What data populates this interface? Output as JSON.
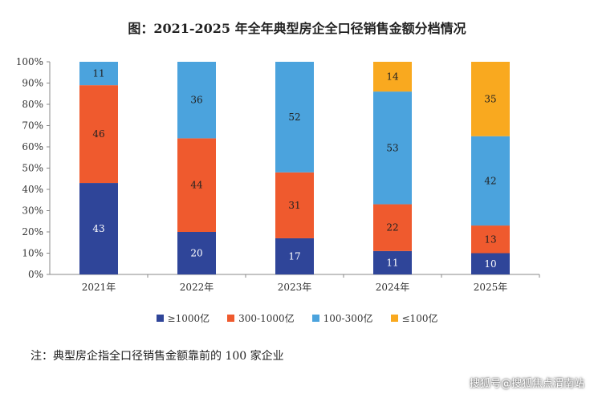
{
  "title": "图：2021-2025 年全年典型房企全口径销售金额分档情况",
  "note": "注：典型房企指全口径销售金额靠前的 100 家企业",
  "watermark": "搜狐号@搜狐焦点渭南站",
  "chart_data": {
    "type": "bar",
    "stacked": true,
    "title": "图：2021-2025 年全年典型房企全口径销售金额分档情况",
    "categories": [
      "2021年",
      "2022年",
      "2023年",
      "2024年",
      "2025年"
    ],
    "series": [
      {
        "name": "≥1000亿",
        "color": "#2f4599",
        "values": [
          43,
          20,
          17,
          11,
          10
        ]
      },
      {
        "name": "300-1000亿",
        "color": "#ef5a2e",
        "values": [
          46,
          44,
          31,
          22,
          13
        ]
      },
      {
        "name": "100-300亿",
        "color": "#4ba3dd",
        "values": [
          11,
          36,
          52,
          53,
          42
        ]
      },
      {
        "name": "≤100亿",
        "color": "#f9a91f",
        "values": [
          null,
          null,
          null,
          14,
          35
        ]
      }
    ],
    "ylim": [
      0,
      100
    ],
    "yticks": [
      "0%",
      "10%",
      "20%",
      "30%",
      "40%",
      "50%",
      "60%",
      "70%",
      "80%",
      "90%",
      "100%"
    ],
    "xlabel": "",
    "ylabel": "",
    "legend": "bottom"
  }
}
